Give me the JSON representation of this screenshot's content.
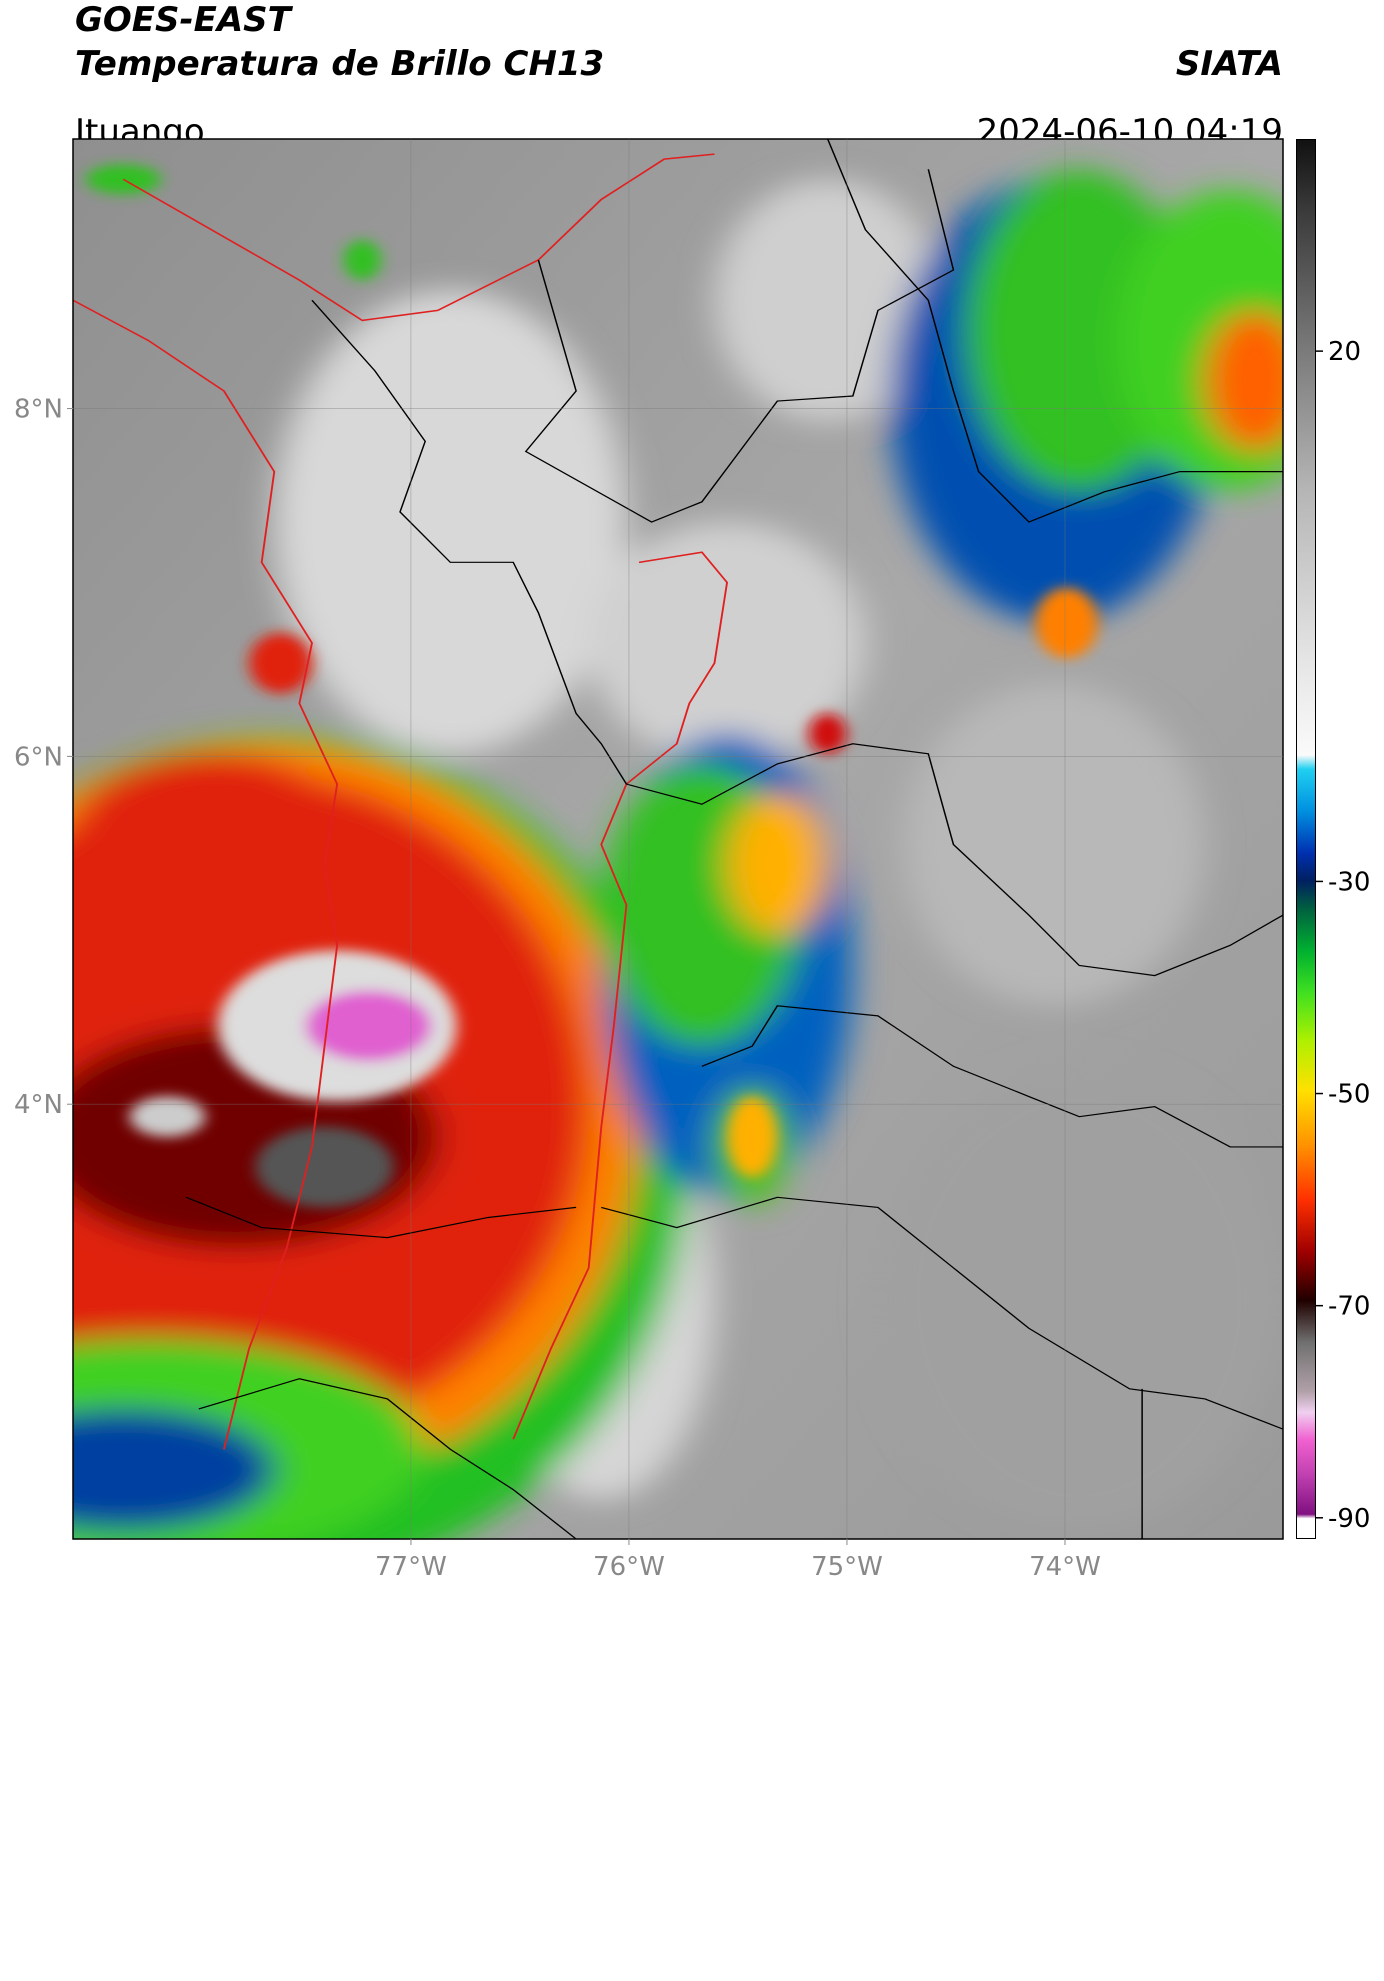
{
  "header": {
    "title": "GOES-EAST",
    "subtitle": "Temperatura de Brillo CH13",
    "source": "SIATA",
    "location": "Ituango",
    "datetime": "2024-06-10 04:19"
  },
  "map": {
    "lat_range": [
      1.5,
      9.55
    ],
    "lon_range": [
      -78.55,
      -73
    ],
    "lat_ticks": [
      {
        "value": 8,
        "label": "8°N"
      },
      {
        "value": 6,
        "label": "6°N"
      },
      {
        "value": 4,
        "label": "4°N"
      }
    ],
    "lon_ticks": [
      {
        "value": -77,
        "label": "77°W"
      },
      {
        "value": -76,
        "label": "76°W"
      },
      {
        "value": -75,
        "label": "75°W"
      },
      {
        "value": -74,
        "label": "74°W"
      }
    ]
  },
  "colorbar": {
    "range": [
      -92,
      40
    ],
    "ticks": [
      20,
      -30,
      -50,
      -70,
      -90
    ]
  }
}
